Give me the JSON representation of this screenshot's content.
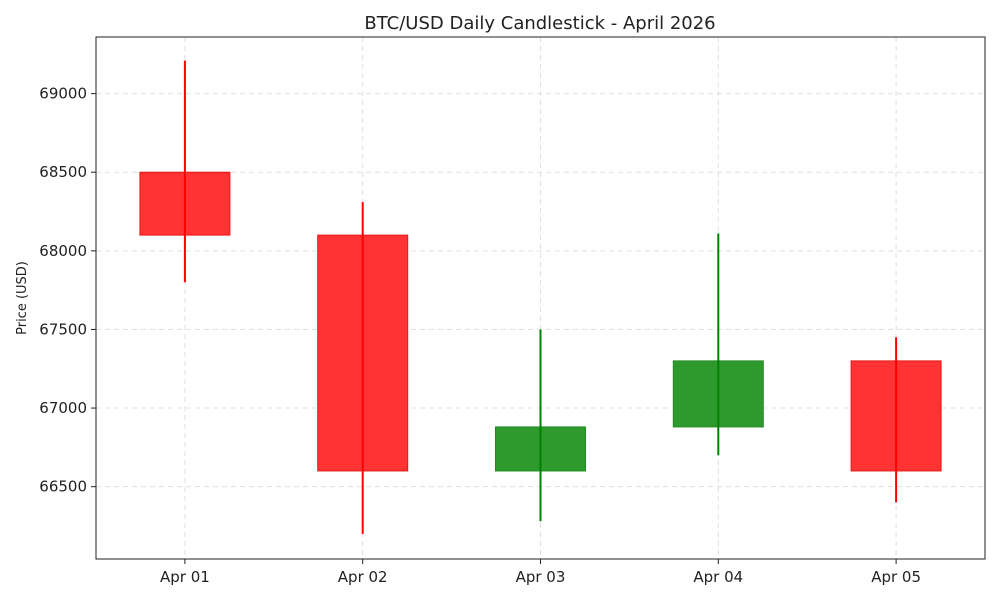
{
  "chart_data": {
    "type": "candlestick",
    "title": "BTC/USD Daily Candlestick - April 2026",
    "xlabel": "",
    "ylabel": "Price (USD)",
    "categories": [
      "Apr 01",
      "Apr 02",
      "Apr 03",
      "Apr 04",
      "Apr 05"
    ],
    "series": [
      {
        "open": [
          68500,
          68100,
          66600,
          66880,
          67300
        ],
        "high": [
          69210,
          68310,
          67500,
          68110,
          67450
        ],
        "low": [
          67800,
          66200,
          66280,
          66700,
          66400
        ],
        "close": [
          68100,
          66600,
          66880,
          67300,
          66600
        ]
      }
    ],
    "ylim": [
      66040,
      69360
    ],
    "yticks": [
      66500,
      67000,
      67500,
      68000,
      68500,
      69000
    ],
    "grid": true,
    "legend": "none",
    "colors": {
      "up_body": "#2e9a2e",
      "up_edge": "#228b22",
      "up_wick": "#008000",
      "down_body": "#ff3333",
      "down_edge": "#e61a1a",
      "down_wick": "#ff0000",
      "grid": "#e0e0e0",
      "axis": "#222222"
    }
  }
}
